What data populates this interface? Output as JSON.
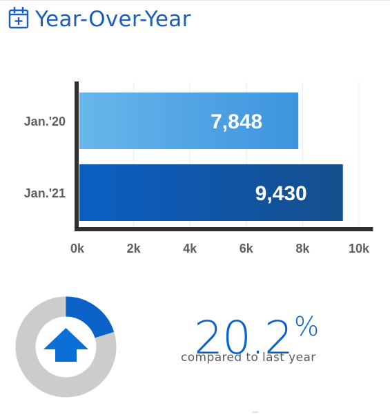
{
  "header": {
    "title": "Year-Over-Year",
    "icon": "calendar-plus-icon"
  },
  "chart_data": {
    "type": "bar",
    "orientation": "horizontal",
    "categories": [
      "Jan.'20",
      "Jan.'21"
    ],
    "values": [
      7848,
      9430
    ],
    "value_labels": [
      "7,848",
      "9,430"
    ],
    "x_ticks": [
      "0k",
      "2k",
      "4k",
      "6k",
      "8k",
      "10k"
    ],
    "xlim": [
      0,
      10500
    ],
    "grid": true,
    "colors": [
      {
        "from": "#68b6ea",
        "to": "#3d94de"
      },
      {
        "from": "#0b5fc4",
        "to": "#154e8c"
      }
    ]
  },
  "change": {
    "percent_value": 20.2,
    "percent_text": "20.2",
    "percent_sign": "%",
    "caption": "compared to last year",
    "direction": "up",
    "icon": "up-arrow-icon",
    "colors": {
      "filled": "#0b63c8",
      "track": "#cccccc",
      "arrow": "#0a6fd6"
    }
  }
}
